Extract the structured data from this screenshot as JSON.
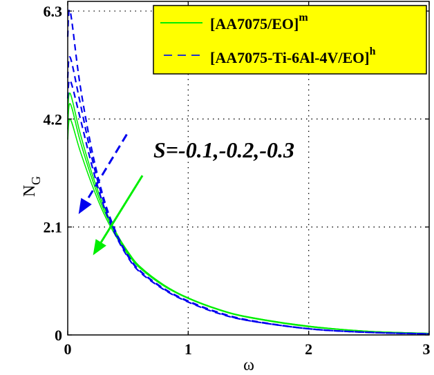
{
  "chart_data": {
    "type": "line",
    "title": "",
    "xlabel": "ω",
    "ylabel": "N_G",
    "ylabel_main": "N",
    "ylabel_sub": "G",
    "xlim": [
      0,
      3
    ],
    "ylim": [
      0,
      6.5
    ],
    "xticks": [
      0,
      1,
      2,
      3
    ],
    "xtick_labels": [
      "0",
      "1",
      "2",
      "3"
    ],
    "yticks": [
      0,
      2.1,
      4.2,
      6.3
    ],
    "ytick_labels": [
      "0",
      "2.1",
      "4.2",
      "6.3"
    ],
    "grid": true,
    "legend_position": "upper right",
    "x": [
      0,
      0.02,
      0.1,
      0.2,
      0.3,
      0.4,
      0.5,
      0.6,
      0.8,
      1.0,
      1.25,
      1.5,
      2.0,
      2.5,
      3.0
    ],
    "series": [
      {
        "name": "[AA7075/EO]^m",
        "S": -0.1,
        "style": "solid",
        "color": "#00ee00",
        "values": [
          4.3,
          4.7,
          3.95,
          3.15,
          2.5,
          2.0,
          1.62,
          1.33,
          0.97,
          0.72,
          0.5,
          0.35,
          0.17,
          0.07,
          0.03
        ]
      },
      {
        "name": "[AA7075/EO]^m",
        "S": -0.2,
        "style": "solid",
        "color": "#00ee00",
        "values": [
          4.0,
          4.5,
          3.8,
          3.05,
          2.43,
          1.96,
          1.6,
          1.32,
          0.96,
          0.72,
          0.5,
          0.35,
          0.17,
          0.07,
          0.03
        ]
      },
      {
        "name": "[AA7075/EO]^m",
        "S": -0.3,
        "style": "solid",
        "color": "#00ee00",
        "values": [
          3.8,
          4.2,
          3.6,
          2.93,
          2.36,
          1.92,
          1.57,
          1.3,
          0.95,
          0.71,
          0.49,
          0.34,
          0.16,
          0.07,
          0.03
        ]
      },
      {
        "name": "[AA7075-Ti-6Al-4V/EO]^h",
        "S": -0.1,
        "style": "dashed",
        "color": "#0000ee",
        "values": [
          5.8,
          6.3,
          4.9,
          3.6,
          2.65,
          2.0,
          1.55,
          1.25,
          0.9,
          0.66,
          0.44,
          0.29,
          0.12,
          0.05,
          0.02
        ]
      },
      {
        "name": "[AA7075-Ti-6Al-4V/EO]^h",
        "S": -0.2,
        "style": "dashed",
        "color": "#0000ee",
        "values": [
          5.0,
          5.4,
          4.55,
          3.45,
          2.58,
          1.97,
          1.53,
          1.24,
          0.89,
          0.65,
          0.43,
          0.28,
          0.12,
          0.05,
          0.02
        ]
      },
      {
        "name": "[AA7075-Ti-6Al-4V/EO]^h",
        "S": -0.3,
        "style": "dashed",
        "color": "#0000ee",
        "values": [
          4.6,
          4.95,
          4.25,
          3.3,
          2.5,
          1.93,
          1.51,
          1.22,
          0.88,
          0.64,
          0.42,
          0.28,
          0.12,
          0.05,
          0.02
        ]
      }
    ],
    "annotations": [
      {
        "text": "S=-0.1,-0.2,-0.3",
        "x": 0.72,
        "y": 3.6
      },
      {
        "type": "arrow",
        "color": "#0000ee",
        "style": "dashed",
        "from": [
          0.49,
          3.9
        ],
        "to": [
          0.09,
          2.35
        ]
      },
      {
        "type": "arrow",
        "color": "#00ee00",
        "style": "solid",
        "from": [
          0.62,
          3.1
        ],
        "to": [
          0.21,
          1.55
        ]
      }
    ]
  },
  "legend": {
    "items": [
      {
        "label_main": "[AA7075/EO]",
        "label_sup": "m",
        "style": "solid",
        "color": "#00ee00"
      },
      {
        "label_main": "[AA7075-Ti-6Al-4V/EO]",
        "label_sup": "h",
        "style": "dashed",
        "color": "#0000ee"
      }
    ],
    "background": "#ffff00"
  },
  "colors": {
    "green": "#00ee00",
    "blue": "#0000ee",
    "legend_bg": "#ffff00"
  }
}
